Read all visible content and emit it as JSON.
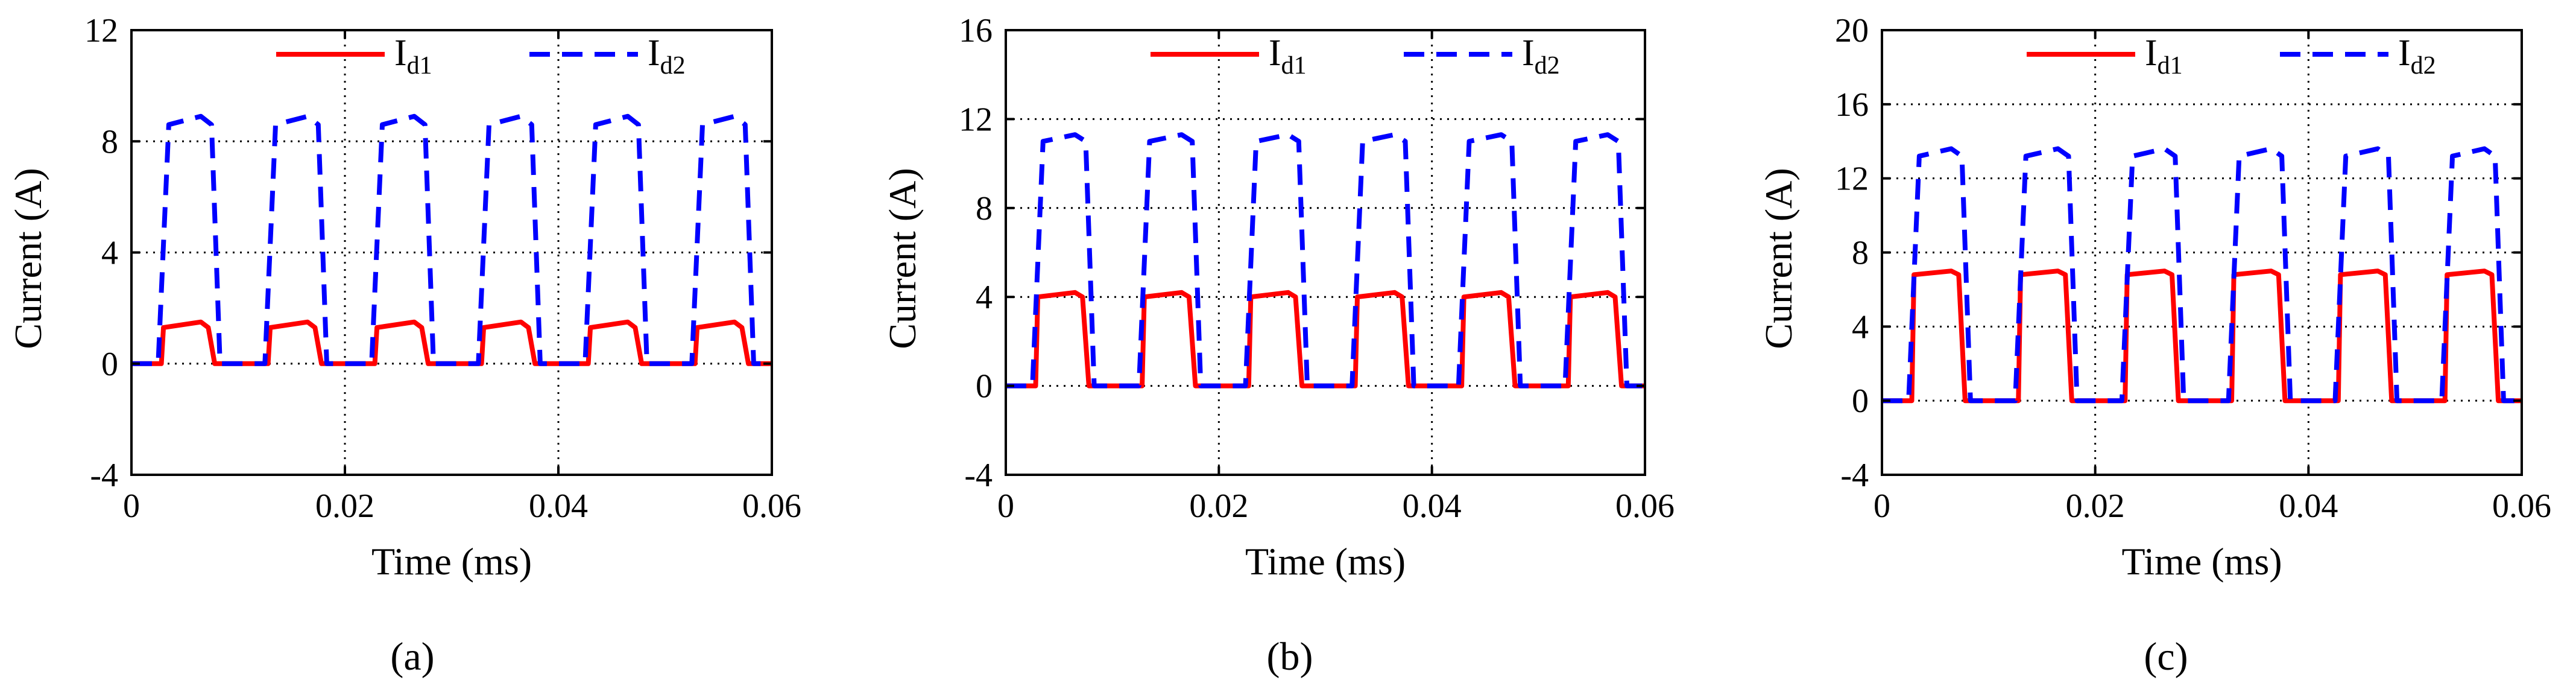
{
  "chart_data": [
    {
      "type": "line",
      "panel_label": "(a)",
      "xlabel": "Time (ms)",
      "ylabel": "Current (A)",
      "xlim": [
        0,
        0.06
      ],
      "ylim": [
        -4,
        12
      ],
      "xticks": [
        0,
        0.02,
        0.04,
        0.06
      ],
      "xtick_labels": [
        "0",
        "0.02",
        "0.04",
        "0.06"
      ],
      "yticks": [
        -4,
        0,
        4,
        8,
        12
      ],
      "ytick_labels": [
        "-4",
        "0",
        "4",
        "8",
        "12"
      ],
      "grid": true,
      "legend_location": "top",
      "series": [
        {
          "name": "Id1",
          "legend_main": "I",
          "legend_sub": "d1",
          "color": "#ff0000",
          "style": "solid",
          "x": [
            0,
            0.0028,
            0.003,
            0.0065,
            0.0072,
            0.0078,
            0.0128,
            0.013,
            0.0165,
            0.0172,
            0.0178,
            0.0228,
            0.023,
            0.0265,
            0.0272,
            0.0278,
            0.0328,
            0.033,
            0.0365,
            0.0372,
            0.0378,
            0.0428,
            0.043,
            0.0465,
            0.0472,
            0.0478,
            0.0528,
            0.053,
            0.0565,
            0.0572,
            0.0578,
            0.06
          ],
          "y": [
            0,
            0,
            1.3,
            1.5,
            1.3,
            0,
            0,
            1.3,
            1.5,
            1.3,
            0,
            0,
            1.3,
            1.5,
            1.3,
            0,
            0,
            1.3,
            1.5,
            1.3,
            0,
            0,
            1.3,
            1.5,
            1.3,
            0,
            0,
            1.3,
            1.5,
            1.3,
            0,
            0
          ]
        },
        {
          "name": "Id2",
          "legend_main": "I",
          "legend_sub": "d2",
          "color": "#0000ff",
          "style": "dashed",
          "x": [
            0,
            0.0025,
            0.0035,
            0.0065,
            0.0075,
            0.0083,
            0.0125,
            0.0135,
            0.0165,
            0.0175,
            0.0183,
            0.0225,
            0.0235,
            0.0265,
            0.0275,
            0.0283,
            0.0325,
            0.0335,
            0.0365,
            0.0375,
            0.0383,
            0.0425,
            0.0435,
            0.0465,
            0.0475,
            0.0483,
            0.0525,
            0.0535,
            0.0565,
            0.0575,
            0.0583,
            0.06
          ],
          "y": [
            0,
            0,
            8.6,
            8.9,
            8.6,
            0,
            0,
            8.6,
            8.9,
            8.6,
            0,
            0,
            8.6,
            8.9,
            8.6,
            0,
            0,
            8.6,
            8.9,
            8.6,
            0,
            0,
            8.6,
            8.9,
            8.6,
            0,
            0,
            8.6,
            8.9,
            8.6,
            0,
            0
          ]
        }
      ]
    },
    {
      "type": "line",
      "panel_label": "(b)",
      "xlabel": "Time (ms)",
      "ylabel": "Current (A)",
      "xlim": [
        0,
        0.06
      ],
      "ylim": [
        -4,
        16
      ],
      "xticks": [
        0,
        0.02,
        0.04,
        0.06
      ],
      "xtick_labels": [
        "0",
        "0.02",
        "0.04",
        "0.06"
      ],
      "yticks": [
        -4,
        0,
        4,
        8,
        12,
        16
      ],
      "ytick_labels": [
        "-4",
        "0",
        "4",
        "8",
        "12",
        "16"
      ],
      "grid": true,
      "legend_location": "top",
      "series": [
        {
          "name": "Id1",
          "legend_main": "I",
          "legend_sub": "d1",
          "color": "#ff0000",
          "style": "solid",
          "x": [
            0,
            0.0028,
            0.003,
            0.0065,
            0.0072,
            0.0078,
            0.0128,
            0.013,
            0.0165,
            0.0172,
            0.0178,
            0.0228,
            0.023,
            0.0265,
            0.0272,
            0.0278,
            0.0328,
            0.033,
            0.0365,
            0.0372,
            0.0378,
            0.0428,
            0.043,
            0.0465,
            0.0472,
            0.0478,
            0.0528,
            0.053,
            0.0565,
            0.0572,
            0.0578,
            0.06
          ],
          "y": [
            0,
            0,
            4.0,
            4.2,
            4.0,
            0,
            0,
            4.0,
            4.2,
            4.0,
            0,
            0,
            4.0,
            4.2,
            4.0,
            0,
            0,
            4.0,
            4.2,
            4.0,
            0,
            0,
            4.0,
            4.2,
            4.0,
            0,
            0,
            4.0,
            4.2,
            4.0,
            0,
            0
          ]
        },
        {
          "name": "Id2",
          "legend_main": "I",
          "legend_sub": "d2",
          "color": "#0000ff",
          "style": "dashed",
          "x": [
            0,
            0.0025,
            0.0035,
            0.0065,
            0.0075,
            0.0083,
            0.0125,
            0.0135,
            0.0165,
            0.0175,
            0.0183,
            0.0225,
            0.0235,
            0.0265,
            0.0275,
            0.0283,
            0.0325,
            0.0335,
            0.0365,
            0.0375,
            0.0383,
            0.0425,
            0.0435,
            0.0465,
            0.0475,
            0.0483,
            0.0525,
            0.0535,
            0.0565,
            0.0575,
            0.0583,
            0.06
          ],
          "y": [
            0,
            0,
            11.0,
            11.3,
            11.0,
            0,
            0,
            11.0,
            11.3,
            11.0,
            0,
            0,
            11.0,
            11.3,
            11.0,
            0,
            0,
            11.0,
            11.3,
            11.0,
            0,
            0,
            11.0,
            11.3,
            11.0,
            0,
            0,
            11.0,
            11.3,
            11.0,
            0,
            0
          ]
        }
      ]
    },
    {
      "type": "line",
      "panel_label": "(c)",
      "xlabel": "Time (ms)",
      "ylabel": "Current (A)",
      "xlim": [
        0,
        0.06
      ],
      "ylim": [
        -4,
        20
      ],
      "xticks": [
        0,
        0.02,
        0.04,
        0.06
      ],
      "xtick_labels": [
        "0",
        "0.02",
        "0.04",
        "0.06"
      ],
      "yticks": [
        -4,
        0,
        4,
        8,
        12,
        16,
        20
      ],
      "ytick_labels": [
        "-4",
        "0",
        "4",
        "8",
        "12",
        "16",
        "20"
      ],
      "grid": true,
      "legend_location": "top",
      "series": [
        {
          "name": "Id1",
          "legend_main": "I",
          "legend_sub": "d1",
          "color": "#ff0000",
          "style": "solid",
          "x": [
            0,
            0.0028,
            0.003,
            0.0065,
            0.0072,
            0.0078,
            0.0128,
            0.013,
            0.0165,
            0.0172,
            0.0178,
            0.0228,
            0.023,
            0.0265,
            0.0272,
            0.0278,
            0.0328,
            0.033,
            0.0365,
            0.0372,
            0.0378,
            0.0428,
            0.043,
            0.0465,
            0.0472,
            0.0478,
            0.0528,
            0.053,
            0.0565,
            0.0572,
            0.0578,
            0.06
          ],
          "y": [
            0,
            0,
            6.8,
            7.0,
            6.8,
            0,
            0,
            6.8,
            7.0,
            6.8,
            0,
            0,
            6.8,
            7.0,
            6.8,
            0,
            0,
            6.8,
            7.0,
            6.8,
            0,
            0,
            6.8,
            7.0,
            6.8,
            0,
            0,
            6.8,
            7.0,
            6.8,
            0,
            0
          ]
        },
        {
          "name": "Id2",
          "legend_main": "I",
          "legend_sub": "d2",
          "color": "#0000ff",
          "style": "dashed",
          "x": [
            0,
            0.0025,
            0.0035,
            0.0065,
            0.0075,
            0.0083,
            0.0125,
            0.0135,
            0.0165,
            0.0175,
            0.0183,
            0.0225,
            0.0235,
            0.0265,
            0.0275,
            0.0283,
            0.0325,
            0.0335,
            0.0365,
            0.0375,
            0.0383,
            0.0425,
            0.0435,
            0.0465,
            0.0475,
            0.0483,
            0.0525,
            0.0535,
            0.0565,
            0.0575,
            0.0583,
            0.06
          ],
          "y": [
            0,
            0,
            13.2,
            13.6,
            13.2,
            0,
            0,
            13.2,
            13.6,
            13.2,
            0,
            0,
            13.2,
            13.6,
            13.2,
            0,
            0,
            13.2,
            13.6,
            13.2,
            0,
            0,
            13.2,
            13.6,
            13.2,
            0,
            0,
            13.2,
            13.6,
            13.2,
            0,
            0
          ]
        }
      ]
    }
  ]
}
